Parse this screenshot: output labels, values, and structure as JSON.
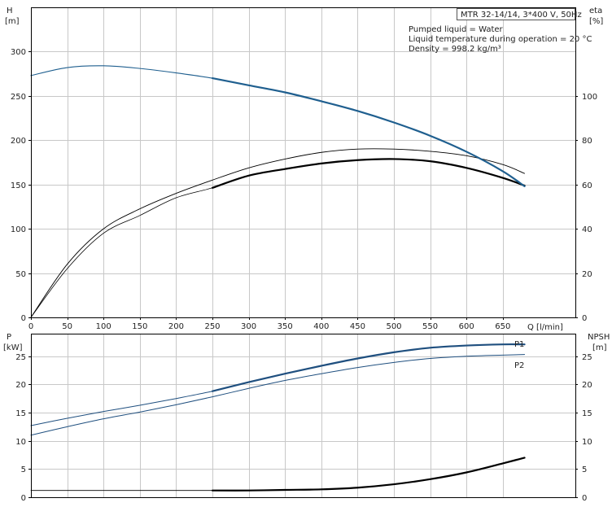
{
  "colors": {
    "head_curve": "#1f5f8f",
    "eta_curve": "#000000",
    "power_curve": "#1f4f7f",
    "npsh_curve": "#000000",
    "grid": "#c8c8c8"
  },
  "info": {
    "pump": "MTR 32-14/14, 3*400 V, 50Hz",
    "liquid": "Pumped liquid = Water",
    "temperature": "Liquid temperature during operation = 20 °C",
    "density": "Density = 998.2 kg/m³"
  },
  "chart_data": [
    {
      "type": "line",
      "panel": "head-efficiency",
      "xlabel": "Q [l/min]",
      "ylabel_top": "H",
      "ylabel_bottom": "[m]",
      "y2label_top": "eta",
      "y2label_bottom": "[%]",
      "xlim": [
        0,
        750
      ],
      "ylim": [
        0,
        350
      ],
      "y2lim": [
        0,
        140
      ],
      "x_ticks": [
        0,
        50,
        100,
        150,
        200,
        250,
        300,
        350,
        400,
        450,
        500,
        550,
        600,
        650
      ],
      "y_ticks": [
        0,
        50,
        100,
        150,
        200,
        250,
        300
      ],
      "y2_ticks": [
        0,
        20,
        40,
        60,
        80,
        100
      ],
      "grid": true,
      "series": [
        {
          "key": "head",
          "axis": "left",
          "highlight_from": 250,
          "x": [
            0,
            50,
            100,
            150,
            200,
            250,
            300,
            350,
            400,
            450,
            500,
            550,
            600,
            650,
            680
          ],
          "y": [
            273,
            282,
            284,
            281,
            276,
            270,
            262,
            254,
            244,
            233,
            220,
            205,
            187,
            165,
            148
          ]
        },
        {
          "key": "efficiency",
          "axis": "right",
          "highlight_from": 250,
          "x": [
            0,
            50,
            100,
            150,
            200,
            250,
            300,
            350,
            400,
            450,
            500,
            550,
            600,
            650,
            680
          ],
          "y": [
            0,
            22,
            38,
            46,
            54,
            58.5,
            64,
            67,
            69.5,
            71,
            71.5,
            70.5,
            67.5,
            63,
            59.5
          ]
        },
        {
          "key": "efficiency_reference",
          "axis": "right",
          "x": [
            0,
            50,
            100,
            150,
            200,
            250,
            300,
            350,
            400,
            450,
            500,
            550,
            600,
            650,
            680
          ],
          "y": [
            0,
            24,
            40,
            49,
            56,
            62,
            67.5,
            71.5,
            74.5,
            76,
            76,
            75,
            73,
            69,
            65
          ]
        }
      ]
    },
    {
      "type": "line",
      "panel": "power-npsh",
      "ylabel_top": "P",
      "ylabel_bottom": "[kW]",
      "y2label_top": "NPSH",
      "y2label_bottom": "[m]",
      "xlim": [
        0,
        750
      ],
      "ylim": [
        0,
        29
      ],
      "y2lim": [
        0,
        29
      ],
      "y_ticks": [
        0,
        5,
        10,
        15,
        20,
        25
      ],
      "y2_ticks": [
        0,
        5,
        10,
        15,
        20,
        25
      ],
      "grid": true,
      "series": [
        {
          "key": "p1",
          "name": "P1",
          "axis": "left",
          "highlight_from": 250,
          "x": [
            0,
            50,
            100,
            150,
            200,
            250,
            300,
            350,
            400,
            450,
            500,
            550,
            600,
            650,
            680
          ],
          "y": [
            12.7,
            14,
            15.2,
            16.3,
            17.5,
            18.8,
            20.4,
            21.9,
            23.3,
            24.6,
            25.7,
            26.5,
            26.9,
            27.1,
            27.1
          ]
        },
        {
          "key": "p2",
          "name": "P2",
          "axis": "left",
          "x": [
            0,
            50,
            100,
            150,
            200,
            250,
            300,
            350,
            400,
            450,
            500,
            550,
            600,
            650,
            680
          ],
          "y": [
            11,
            12.5,
            13.9,
            15.1,
            16.4,
            17.8,
            19.3,
            20.7,
            21.9,
            23,
            23.9,
            24.6,
            25,
            25.2,
            25.3
          ]
        },
        {
          "key": "npsh",
          "axis": "right",
          "highlight_from": 250,
          "x": [
            0,
            250,
            300,
            350,
            400,
            450,
            500,
            550,
            600,
            650,
            680
          ],
          "y": [
            1.2,
            1.2,
            1.2,
            1.3,
            1.4,
            1.7,
            2.3,
            3.2,
            4.4,
            6,
            7
          ]
        }
      ]
    }
  ]
}
